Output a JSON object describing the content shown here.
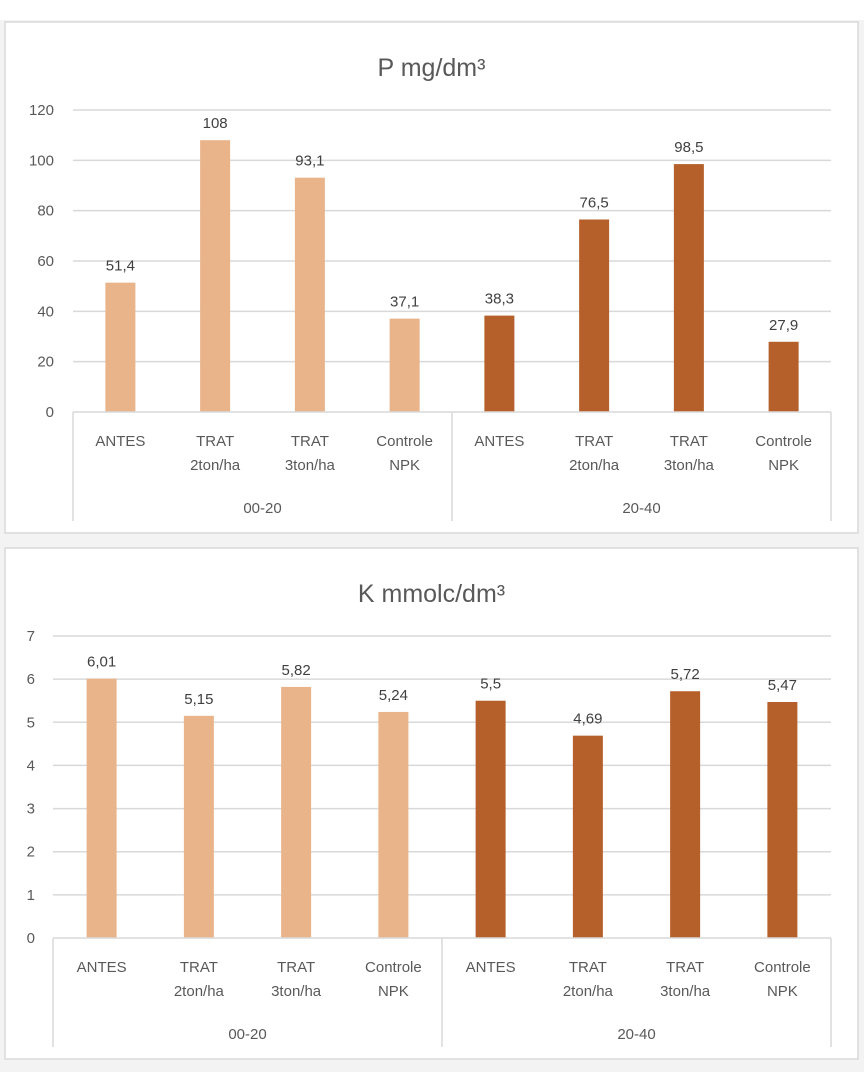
{
  "chart_data": [
    {
      "type": "bar",
      "title": "P mg/dm³",
      "xlabel": "",
      "ylabel": "",
      "ylim": [
        0,
        120
      ],
      "yticks": [
        0,
        20,
        40,
        60,
        80,
        100,
        120
      ],
      "grid": true,
      "legend": "none",
      "groups": [
        {
          "name": "00-20",
          "color": "#E9B48A",
          "categories": [
            [
              "ANTES"
            ],
            [
              "TRAT",
              "2ton/ha"
            ],
            [
              "TRAT",
              "3ton/ha"
            ],
            [
              "Controle",
              "NPK"
            ]
          ],
          "values": [
            51.4,
            108,
            93.1,
            37.1
          ],
          "labels": [
            "51,4",
            "108",
            "93,1",
            "37,1"
          ]
        },
        {
          "name": "20-40",
          "color": "#B5602B",
          "categories": [
            [
              "ANTES"
            ],
            [
              "TRAT",
              "2ton/ha"
            ],
            [
              "TRAT",
              "3ton/ha"
            ],
            [
              "Controle",
              "NPK"
            ]
          ],
          "values": [
            38.3,
            76.5,
            98.5,
            27.9
          ],
          "labels": [
            "38,3",
            "76,5",
            "98,5",
            "27,9"
          ]
        }
      ]
    },
    {
      "type": "bar",
      "title": "K mmolc/dm³",
      "xlabel": "",
      "ylabel": "",
      "ylim": [
        0,
        7
      ],
      "yticks": [
        0,
        1,
        2,
        3,
        4,
        5,
        6,
        7
      ],
      "grid": true,
      "legend": "none",
      "groups": [
        {
          "name": "00-20",
          "color": "#E9B48A",
          "categories": [
            [
              "ANTES"
            ],
            [
              "TRAT",
              "2ton/ha"
            ],
            [
              "TRAT",
              "3ton/ha"
            ],
            [
              "Controle",
              "NPK"
            ]
          ],
          "values": [
            6.01,
            5.15,
            5.82,
            5.24
          ],
          "labels": [
            "6,01",
            "5,15",
            "5,82",
            "5,24"
          ]
        },
        {
          "name": "20-40",
          "color": "#B5602B",
          "categories": [
            [
              "ANTES"
            ],
            [
              "TRAT",
              "2ton/ha"
            ],
            [
              "TRAT",
              "3ton/ha"
            ],
            [
              "Controle",
              "NPK"
            ]
          ],
          "values": [
            5.5,
            4.69,
            5.72,
            5.47
          ],
          "labels": [
            "5,5",
            "4,69",
            "5,72",
            "5,47"
          ]
        }
      ]
    }
  ]
}
